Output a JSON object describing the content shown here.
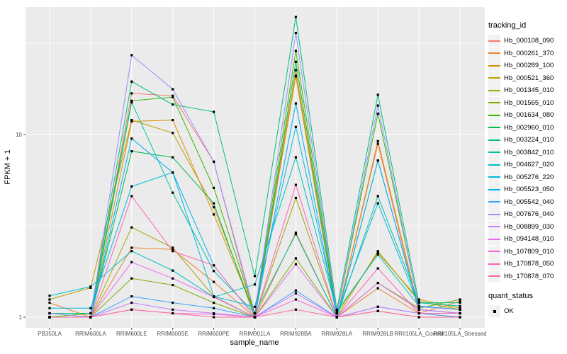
{
  "chart_data": {
    "type": "line",
    "title": "",
    "xlabel": "sample_name",
    "ylabel": "FPKM + 1",
    "y_scale": "log10",
    "y_ticks": [
      1,
      10
    ],
    "y_minor_gridlines": [
      3.162,
      31.62
    ],
    "ylim": [
      0.88,
      50
    ],
    "grid": true,
    "panel_bg": "#EBEBEB",
    "grid_color": "#FFFFFF",
    "point_marker": "square",
    "point_color": "#000000",
    "legend_position": "right",
    "legend_title": "tracking_id",
    "legend2_title": "quant_status",
    "legend2_items": [
      {
        "label": "OK",
        "marker": "square",
        "color": "#000000"
      }
    ],
    "categories": [
      "PB350LA",
      "RRIM600LA",
      "RRIM600LE",
      "RRIM600SE",
      "RRIM600PE",
      "RRIM901LA",
      "RRIM928BA",
      "RRIM928LA",
      "RRIM928LB",
      "RRII105LA_Control",
      "RRII105LA_Stressed"
    ],
    "series": [
      {
        "name": "Hb_000108_090",
        "color": "#F8766D",
        "values": [
          1.05,
          1.0,
          16.8,
          16.3,
          7.1,
          1.0,
          21.0,
          1.0,
          8.9,
          1.05,
          1.0
        ]
      },
      {
        "name": "Hb_000261_370",
        "color": "#EA8331",
        "values": [
          1.2,
          1.0,
          2.4,
          2.35,
          1.56,
          1.0,
          2.9,
          1.0,
          1.44,
          1.05,
          1.22
        ]
      },
      {
        "name": "Hb_000289_100",
        "color": "#D89000",
        "values": [
          1.0,
          1.0,
          11.8,
          12.0,
          3.65,
          1.05,
          22.5,
          1.0,
          9.2,
          1.1,
          1.05
        ]
      },
      {
        "name": "Hb_000521_360",
        "color": "#C09B00",
        "values": [
          1.25,
          1.45,
          12.0,
          10.2,
          4.0,
          1.05,
          20.8,
          1.05,
          2.25,
          1.25,
          1.12
        ]
      },
      {
        "name": "Hb_001345_010",
        "color": "#A3A500",
        "values": [
          1.0,
          1.0,
          3.1,
          2.4,
          1.3,
          1.0,
          4.5,
          1.0,
          2.3,
          1.22,
          1.1
        ]
      },
      {
        "name": "Hb_001565_010",
        "color": "#7CAE00",
        "values": [
          1.0,
          1.0,
          1.63,
          1.5,
          1.2,
          1.0,
          2.1,
          1.0,
          1.54,
          1.12,
          1.25
        ]
      },
      {
        "name": "Hb_001634_080",
        "color": "#39B600",
        "values": [
          1.0,
          1.05,
          15.3,
          16.0,
          5.1,
          1.05,
          28.7,
          1.05,
          13.0,
          1.15,
          1.1
        ]
      },
      {
        "name": "Hb_002960_010",
        "color": "#00BB4E",
        "values": [
          1.0,
          1.0,
          8.1,
          7.5,
          4.2,
          1.0,
          25.0,
          1.0,
          7.2,
          1.1,
          1.05
        ]
      },
      {
        "name": "Hb_003224_010",
        "color": "#00BF7D",
        "values": [
          1.05,
          1.05,
          19.5,
          14.6,
          13.3,
          1.68,
          44.0,
          1.1,
          16.5,
          1.2,
          1.2
        ]
      },
      {
        "name": "Hb_003842_010",
        "color": "#00C1A3",
        "values": [
          1.0,
          1.0,
          15.0,
          4.8,
          1.79,
          1.05,
          2.85,
          1.0,
          4.6,
          1.2,
          1.15
        ]
      },
      {
        "name": "Hb_004627_020",
        "color": "#00BFC4",
        "values": [
          1.31,
          1.47,
          2.3,
          1.8,
          1.29,
          1.51,
          7.5,
          1.08,
          2.2,
          1.15,
          1.1
        ]
      },
      {
        "name": "Hb_005276_220",
        "color": "#00BAE0",
        "values": [
          1.12,
          1.12,
          5.2,
          6.2,
          1.3,
          1.14,
          11.0,
          1.05,
          4.2,
          1.15,
          1.1
        ]
      },
      {
        "name": "Hb_005523_050",
        "color": "#00B0F6",
        "values": [
          1.0,
          1.0,
          9.5,
          6.2,
          1.92,
          1.0,
          14.8,
          1.0,
          7.2,
          1.1,
          1.05
        ]
      },
      {
        "name": "Hb_005542_040",
        "color": "#35A2FF",
        "values": [
          1.0,
          1.0,
          1.3,
          1.2,
          1.12,
          1.0,
          1.4,
          1.0,
          1.14,
          1.05,
          1.0
        ]
      },
      {
        "name": "Hb_007676_040",
        "color": "#9590FF",
        "values": [
          1.05,
          1.0,
          27.2,
          17.7,
          7.1,
          1.05,
          36.0,
          1.05,
          14.4,
          1.14,
          1.1
        ]
      },
      {
        "name": "Hb_008899_030",
        "color": "#C77CFF",
        "values": [
          1.0,
          1.0,
          1.2,
          1.1,
          1.05,
          1.0,
          1.35,
          1.0,
          1.14,
          1.05,
          1.05
        ]
      },
      {
        "name": "Hb_094148_010",
        "color": "#E76BF3",
        "values": [
          1.0,
          1.0,
          2.0,
          1.63,
          1.29,
          1.0,
          1.95,
          1.0,
          1.54,
          1.1,
          1.05
        ]
      },
      {
        "name": "Hb_107809_010",
        "color": "#FA62DB",
        "values": [
          1.0,
          1.0,
          1.1,
          1.05,
          1.04,
          1.0,
          1.25,
          1.0,
          1.08,
          1.0,
          1.0
        ]
      },
      {
        "name": "Hb_170878_050",
        "color": "#FF62BC",
        "values": [
          1.0,
          1.0,
          4.6,
          2.3,
          1.92,
          1.0,
          5.3,
          1.0,
          1.85,
          1.05,
          1.05
        ]
      },
      {
        "name": "Hb_170878_070",
        "color": "#FF6A98",
        "values": [
          1.0,
          1.0,
          1.1,
          1.05,
          1.0,
          1.0,
          1.1,
          1.0,
          1.08,
          1.0,
          1.0
        ]
      }
    ]
  }
}
